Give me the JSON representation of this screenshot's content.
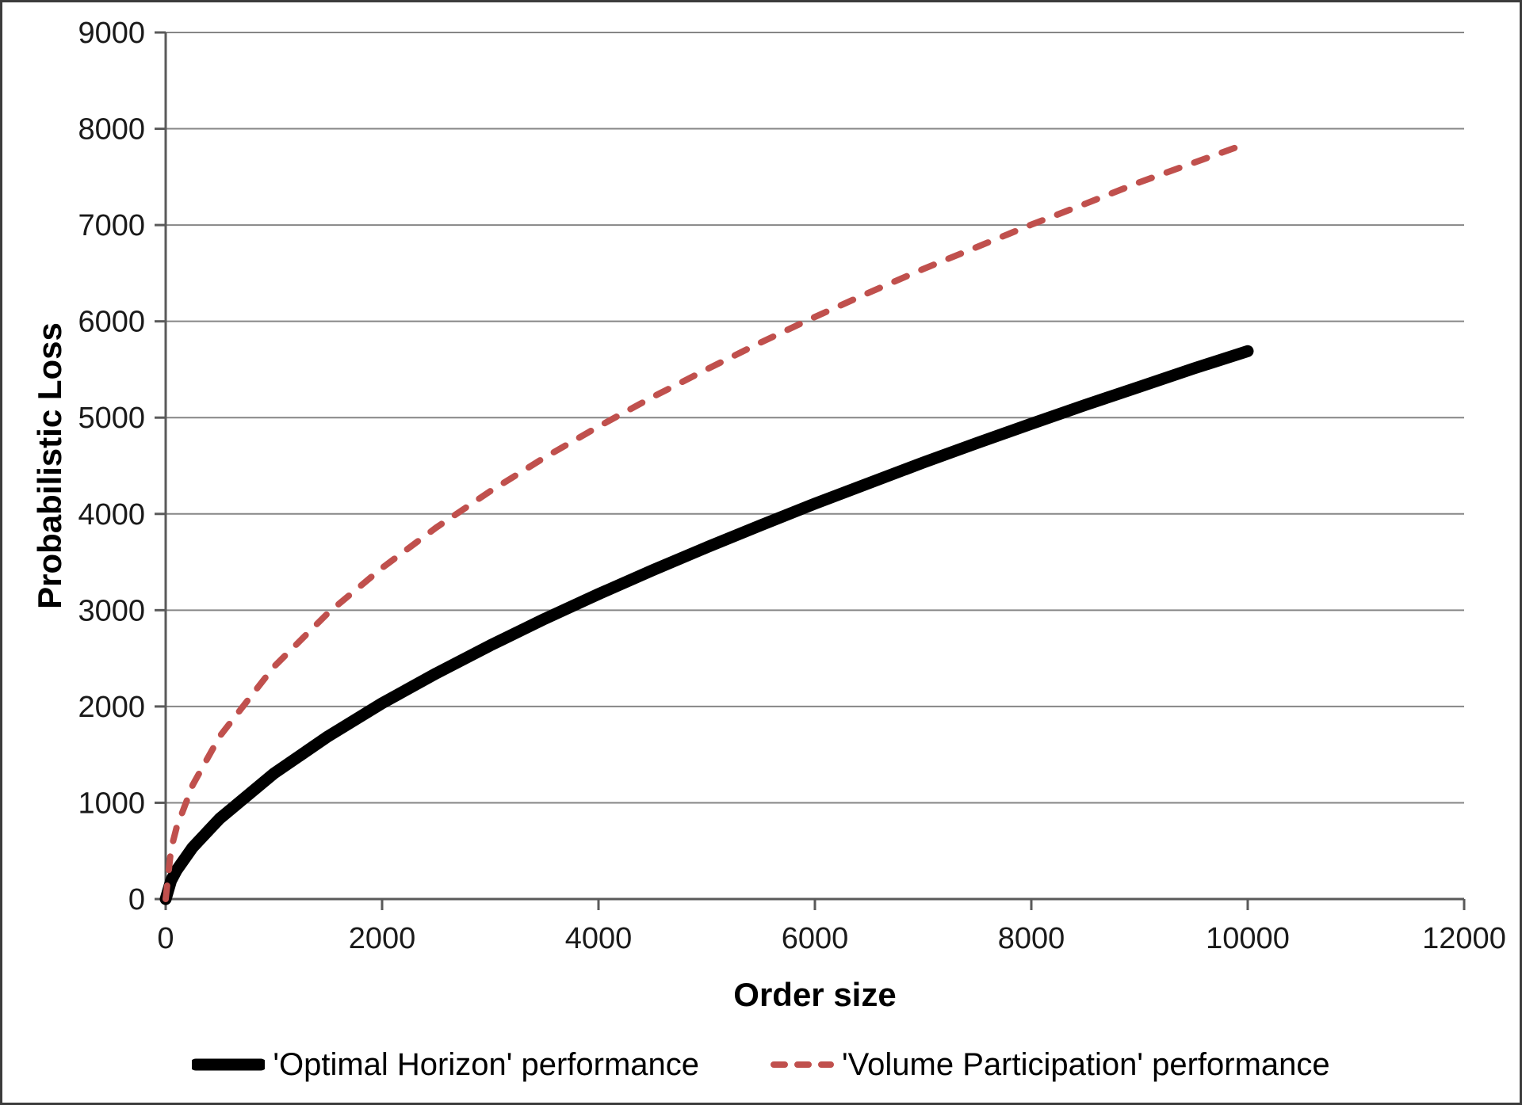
{
  "figure": {
    "background_color": "#ffffff",
    "border_color": "#3c3c3c"
  },
  "chart_data": {
    "type": "line",
    "title": "",
    "xlabel": "Order size",
    "ylabel": "Probabilistic Loss",
    "xlim": [
      0,
      12000
    ],
    "ylim": [
      0,
      9000
    ],
    "x_ticks": [
      0,
      2000,
      4000,
      6000,
      8000,
      10000,
      12000
    ],
    "y_ticks": [
      0,
      1000,
      2000,
      3000,
      4000,
      5000,
      6000,
      7000,
      8000,
      9000
    ],
    "grid": "horizontal",
    "grid_color": "#868686",
    "axis_color": "#5a5a5a",
    "tick_label_color": "#1a1a1a",
    "legend_position": "bottom",
    "x": [
      0,
      50,
      100,
      250,
      500,
      1000,
      1500,
      2000,
      2500,
      3000,
      3500,
      4000,
      4500,
      5000,
      5500,
      6000,
      6500,
      7000,
      7500,
      8000,
      8500,
      9000,
      9500,
      10000
    ],
    "series": [
      {
        "name": "'Optimal Horizon' performance",
        "color": "#000000",
        "style": "solid",
        "line_width": 15,
        "values": [
          0,
          192,
          299,
          537,
          837,
          1304,
          1690,
          2034,
          2344,
          2634,
          2909,
          3167,
          3415,
          3653,
          3882,
          4107,
          4320,
          4533,
          4737,
          4936,
          5132,
          5320,
          5510,
          5690
        ]
      },
      {
        "name": "'Volume Participation' performance",
        "color": "#c0504d",
        "style": "dashed",
        "line_width": 8,
        "values": [
          0,
          519,
          741,
          1185,
          1691,
          2412,
          2971,
          3439,
          3858,
          4236,
          4585,
          4907,
          5214,
          5501,
          5781,
          6046,
          6298,
          6543,
          6773,
          7004,
          7221,
          7444,
          7647,
          7850
        ]
      }
    ]
  }
}
